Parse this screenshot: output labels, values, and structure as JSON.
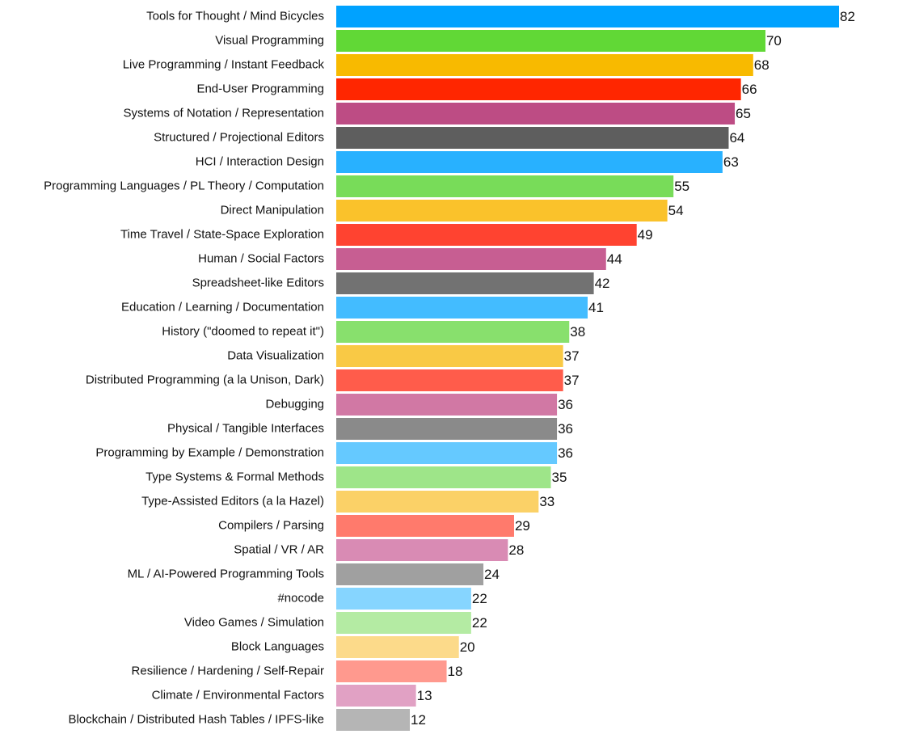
{
  "chart_data": {
    "type": "bar",
    "orientation": "horizontal",
    "title": "",
    "xlabel": "",
    "ylabel": "",
    "xlim": [
      0,
      82
    ],
    "grid": false,
    "legend": "none",
    "categories": [
      "Tools for Thought / Mind Bicycles",
      "Visual Programming",
      "Live Programming / Instant Feedback",
      "End-User Programming",
      "Systems of Notation / Representation",
      "Structured / Projectional Editors",
      "HCI / Interaction Design",
      "Programming Languages / PL Theory / Computation",
      "Direct Manipulation",
      "Time Travel / State-Space Exploration",
      "Human / Social Factors",
      "Spreadsheet-like Editors",
      "Education / Learning / Documentation",
      "History (\"doomed to repeat it\")",
      "Data Visualization",
      "Distributed Programming (a la Unison, Dark)",
      "Debugging",
      "Physical / Tangible Interfaces",
      "Programming by Example / Demonstration",
      "Type Systems & Formal Methods",
      "Type-Assisted Editors (a la Hazel)",
      "Compilers / Parsing",
      "Spatial / VR / AR",
      "ML / AI-Powered Programming Tools",
      "#nocode",
      "Video Games / Simulation",
      "Block Languages",
      "Resilience / Hardening / Self-Repair",
      "Climate / Environmental Factors",
      "Blockchain / Distributed Hash Tables / IPFS-like"
    ],
    "values": [
      82,
      70,
      68,
      66,
      65,
      64,
      63,
      55,
      54,
      49,
      44,
      42,
      41,
      38,
      37,
      37,
      36,
      36,
      36,
      35,
      33,
      29,
      28,
      24,
      22,
      22,
      20,
      18,
      13,
      12
    ],
    "colors": [
      "#00a2ff",
      "#61d836",
      "#f8ba00",
      "#ff2600",
      "#bd4c84",
      "#5e5e5e",
      "#28b1ff",
      "#78dc59",
      "#fac22b",
      "#ff4330",
      "#c75e92",
      "#727272",
      "#43bcff",
      "#88e06d",
      "#f9c945",
      "#ff5c4b",
      "#d178a4",
      "#8a8a8a",
      "#65c9ff",
      "#9ee589",
      "#fbd167",
      "#ff7a6c",
      "#d98bb4",
      "#a0a0a0",
      "#86d5ff",
      "#b4eba3",
      "#fcda8a",
      "#ff998e",
      "#e1a1c4",
      "#b5b5b5"
    ]
  }
}
